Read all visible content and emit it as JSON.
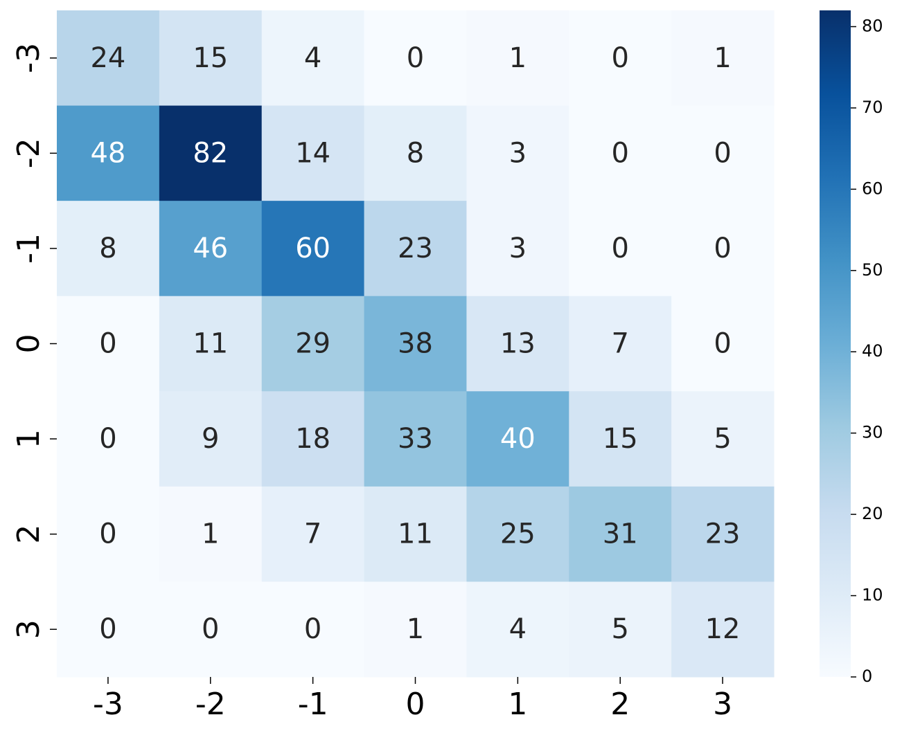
{
  "chart_data": {
    "type": "heatmap",
    "x": [
      -3,
      -2,
      -1,
      0,
      1,
      2,
      3
    ],
    "y": [
      -3,
      -2,
      -1,
      0,
      1,
      2,
      3
    ],
    "values": [
      [
        24,
        15,
        4,
        0,
        1,
        0,
        1
      ],
      [
        48,
        82,
        14,
        8,
        3,
        0,
        0
      ],
      [
        8,
        46,
        60,
        23,
        3,
        0,
        0
      ],
      [
        0,
        11,
        29,
        38,
        13,
        7,
        0
      ],
      [
        0,
        9,
        18,
        33,
        40,
        15,
        5
      ],
      [
        0,
        1,
        7,
        11,
        25,
        31,
        23
      ],
      [
        0,
        0,
        0,
        1,
        4,
        5,
        12
      ]
    ],
    "colormap": [
      "#f7fbff",
      "#deebf7",
      "#c6dbef",
      "#9ecae1",
      "#6baed6",
      "#4292c6",
      "#2171b5",
      "#08519c",
      "#08306b"
    ],
    "clim": [
      0,
      82
    ],
    "cticks": [
      0,
      10,
      20,
      30,
      40,
      50,
      60,
      70,
      80
    ]
  }
}
